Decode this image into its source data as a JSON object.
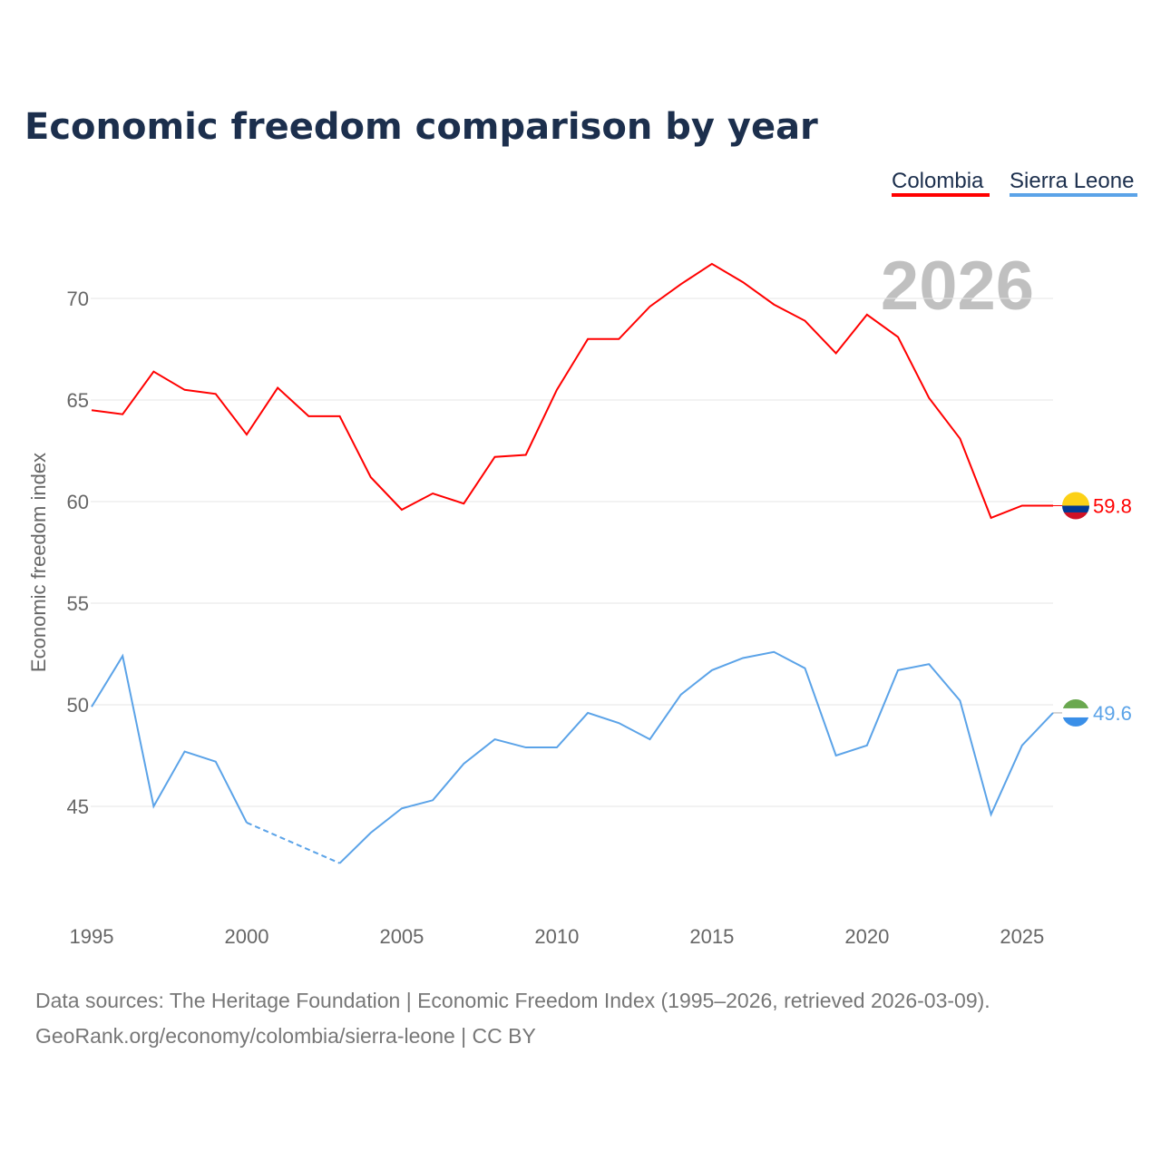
{
  "title": "Economic freedom comparison by year",
  "year_watermark": "2026",
  "source_line1": "Data sources: The Heritage Foundation | Economic Freedom Index (1995–2026, retrieved 2026-03-09).",
  "source_line2": "GeoRank.org/economy/colombia/sierra-leone | CC BY",
  "chart_data": {
    "type": "line",
    "title": "Economic freedom comparison by year",
    "xlabel": "",
    "ylabel": "Economic freedom index",
    "xlim": [
      1995,
      2026
    ],
    "ylim": [
      40,
      73.2
    ],
    "grid": true,
    "legend_placement": "top-right",
    "x_ticks": [
      1995,
      2000,
      2005,
      2010,
      2015,
      2020,
      2025
    ],
    "y_ticks": [
      45,
      50,
      55,
      60,
      65,
      70
    ],
    "x": [
      1995,
      1996,
      1997,
      1998,
      1999,
      2000,
      2001,
      2002,
      2003,
      2004,
      2005,
      2006,
      2007,
      2008,
      2009,
      2010,
      2011,
      2012,
      2013,
      2014,
      2015,
      2016,
      2017,
      2018,
      2019,
      2020,
      2021,
      2022,
      2023,
      2024,
      2025,
      2026
    ],
    "series": [
      {
        "name": "Colombia",
        "color": "#ff0000",
        "end_label": "59.8",
        "values": [
          64.5,
          64.3,
          66.4,
          65.5,
          65.3,
          63.3,
          65.6,
          64.2,
          64.2,
          61.2,
          59.6,
          60.4,
          59.9,
          62.2,
          62.3,
          65.5,
          68.0,
          68.0,
          69.6,
          70.7,
          71.7,
          70.8,
          69.7,
          68.9,
          67.3,
          69.2,
          68.1,
          65.1,
          63.1,
          59.2,
          59.8,
          59.8
        ]
      },
      {
        "name": "Sierra Leone",
        "color": "#5ba3e8",
        "end_label": "49.6",
        "values": [
          49.9,
          52.4,
          45.0,
          47.7,
          47.2,
          44.2,
          null,
          null,
          42.2,
          43.7,
          44.9,
          45.3,
          47.1,
          48.3,
          47.9,
          47.9,
          49.6,
          49.1,
          48.3,
          50.5,
          51.7,
          52.3,
          52.6,
          51.8,
          47.5,
          48.0,
          51.7,
          52.0,
          50.2,
          44.6,
          48.0,
          49.6
        ]
      }
    ]
  }
}
